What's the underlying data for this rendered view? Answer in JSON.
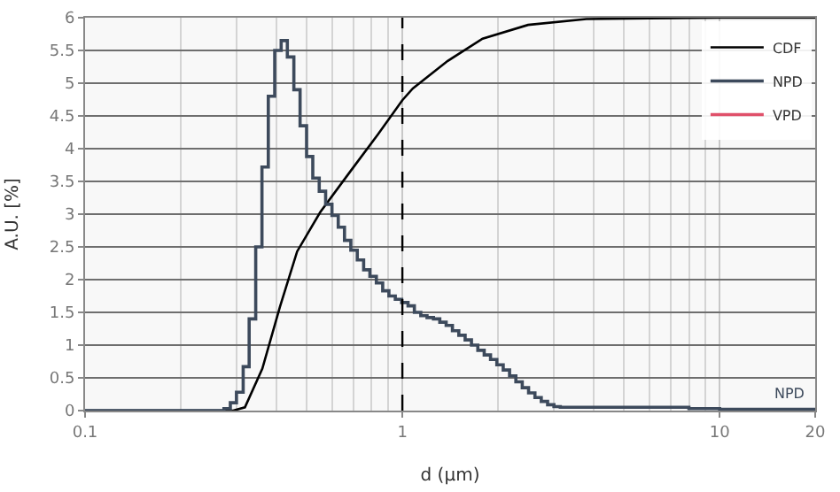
{
  "chart_data": {
    "type": "line",
    "xlabel": "d (µm)",
    "ylabel": "A.U. [%]",
    "log": "x",
    "xlim": [
      0.1,
      20
    ],
    "xticks": [
      0.1,
      1,
      10,
      20
    ],
    "ylim": [
      0,
      6
    ],
    "yticks": [
      0,
      0.5,
      1,
      1.5,
      2,
      2.5,
      3,
      3.5,
      4,
      4.5,
      5,
      5.5,
      6
    ],
    "grid": true,
    "legend": "top right",
    "marker": "none",
    "series": [
      {
        "name": "CDF",
        "color": "#000000",
        "x": [
          0.1,
          0.25,
          0.293,
          0.319,
          0.362,
          0.411,
          0.466,
          0.551,
          0.68,
          0.838,
          1.0,
          1.079,
          1.39,
          1.79,
          2.49,
          3.8,
          6,
          10,
          20
        ],
        "values": [
          0,
          0,
          0,
          0.05,
          0.64,
          1.58,
          2.43,
          3.03,
          3.63,
          4.22,
          4.74,
          4.92,
          5.34,
          5.68,
          5.89,
          5.98,
          5.99,
          6,
          6
        ]
      },
      {
        "name": "NPD",
        "type": "step",
        "color": "#3d4a5c",
        "x": [
          0.1,
          0.274,
          0.287,
          0.3,
          0.315,
          0.329,
          0.345,
          0.361,
          0.378,
          0.396,
          0.415,
          0.434,
          0.455,
          0.476,
          0.499,
          0.522,
          0.547,
          0.573,
          0.6,
          0.628,
          0.657,
          0.688,
          0.721,
          0.755,
          0.79,
          0.828,
          0.867,
          0.907,
          0.95,
          0.995,
          1.042,
          1.091,
          1.143,
          1.196,
          1.253,
          1.312,
          1.374,
          1.438,
          1.506,
          1.577,
          1.651,
          1.729,
          1.811,
          1.896,
          1.985,
          2.079,
          2.177,
          2.279,
          2.387,
          2.499,
          2.617,
          2.74,
          2.869,
          3.004,
          3.146,
          5,
          8,
          10,
          20
        ],
        "values": [
          0,
          0.03,
          0.12,
          0.28,
          0.67,
          1.4,
          2.5,
          3.72,
          4.8,
          5.5,
          5.65,
          5.4,
          4.9,
          4.35,
          3.88,
          3.55,
          3.35,
          3.15,
          2.98,
          2.8,
          2.6,
          2.45,
          2.3,
          2.15,
          2.05,
          1.95,
          1.83,
          1.75,
          1.7,
          1.65,
          1.6,
          1.5,
          1.45,
          1.42,
          1.4,
          1.35,
          1.3,
          1.22,
          1.15,
          1.08,
          1.0,
          0.92,
          0.85,
          0.78,
          0.7,
          0.62,
          0.53,
          0.44,
          0.35,
          0.27,
          0.2,
          0.14,
          0.09,
          0.06,
          0.05,
          0.05,
          0.03,
          0.02,
          0
        ]
      },
      {
        "name": "VPD",
        "type": "step",
        "color": "#e0506a"
      }
    ],
    "ref_lines": [
      {
        "axis": "x",
        "value": 1,
        "line_style": "dashed",
        "color": "#000000"
      }
    ],
    "annotations": [
      "NPD"
    ]
  }
}
